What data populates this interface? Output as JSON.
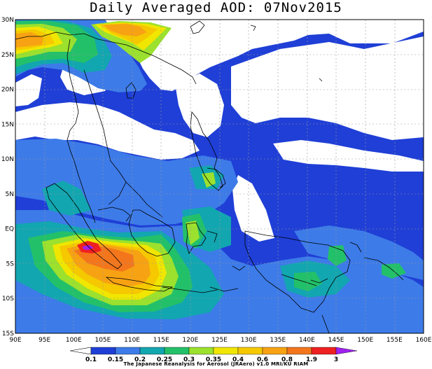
{
  "title": "Daily Averaged AOD: 07Nov2015",
  "credit": "The Japanese Reanalysis for Aerosol (JRAero) v1.0 MRI/KU RIAM",
  "colors": {
    "c0": "#ffffff",
    "c1": "#1f3fd6",
    "c2": "#3d7be8",
    "c3": "#12a6b0",
    "c4": "#23c06a",
    "c5": "#9be12d",
    "c6": "#f0e600",
    "c7": "#f5c800",
    "c8": "#f7a213",
    "c9": "#f3761c",
    "c10": "#ef2020",
    "c11": "#a020f0"
  },
  "lat_labels": [
    "30N",
    "25N",
    "20N",
    "15N",
    "10N",
    "5N",
    "EQ",
    "5S",
    "10S",
    "15S"
  ],
  "lon_labels": [
    "90E",
    "95E",
    "100E",
    "105E",
    "110E",
    "115E",
    "120E",
    "125E",
    "130E",
    "135E",
    "140E",
    "145E",
    "150E",
    "155E",
    "160E"
  ],
  "colorbar": {
    "levels": [
      "0.1",
      "0.15",
      "0.2",
      "0.25",
      "0.3",
      "0.35",
      "0.4",
      "0.6",
      "0.8",
      "1.9",
      "3"
    ],
    "colors": [
      "#1f3fd6",
      "#3d7be8",
      "#12a6b0",
      "#23c06a",
      "#9be12d",
      "#f0e600",
      "#f5c800",
      "#f7a213",
      "#f3761c",
      "#ef2020"
    ]
  }
}
